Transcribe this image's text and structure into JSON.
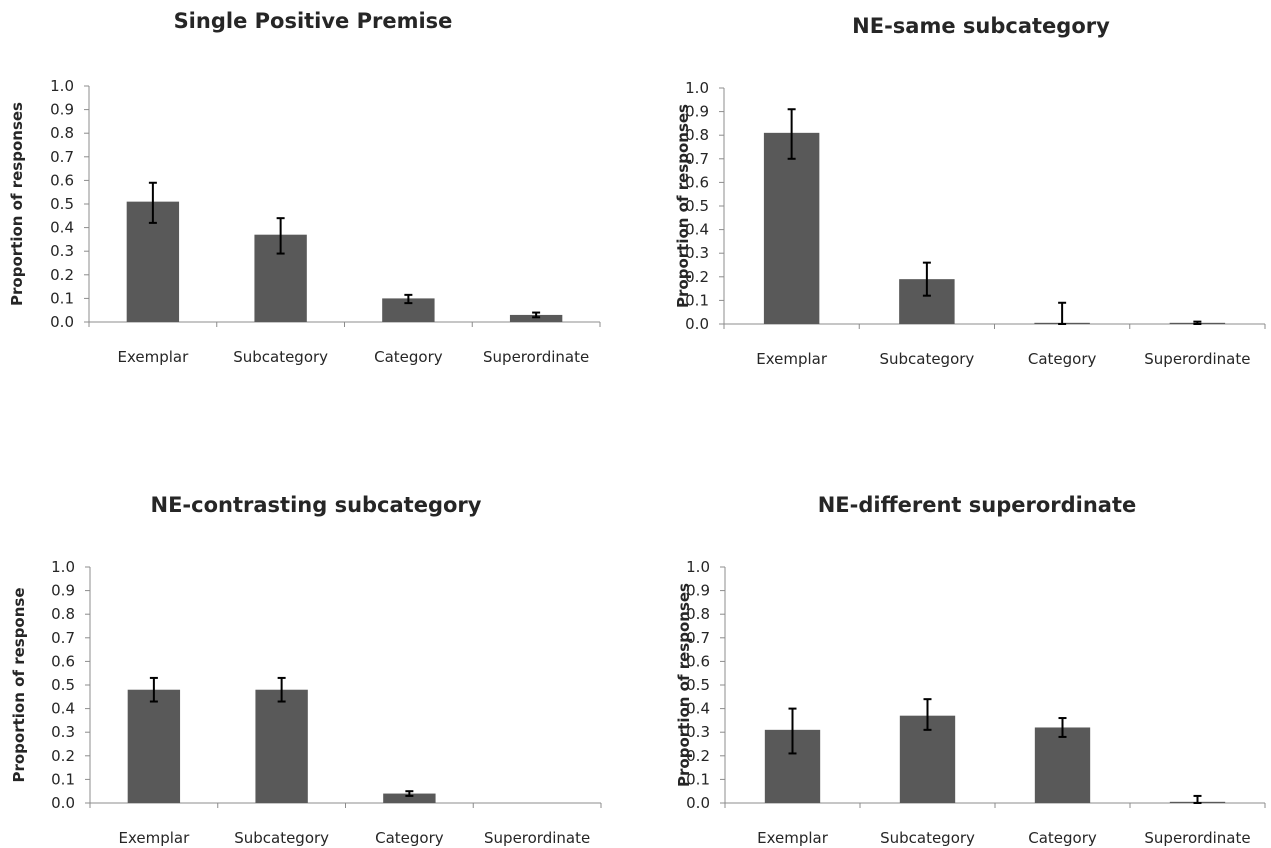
{
  "chart_data": [
    {
      "type": "bar",
      "title": "Single Positive Premise",
      "xlabel": "",
      "ylabel": "Proportion of responses",
      "ylim": [
        0,
        1
      ],
      "ticks": [
        "0.0",
        "0.1",
        "0.2",
        "0.3",
        "0.4",
        "0.5",
        "0.6",
        "0.7",
        "0.8",
        "0.9",
        "1.0"
      ],
      "categories": [
        "Exemplar",
        "Subcategory",
        "Category",
        "Superordinate"
      ],
      "values": [
        0.51,
        0.37,
        0.1,
        0.03
      ],
      "error": [
        [
          0.42,
          0.59
        ],
        [
          0.29,
          0.44
        ],
        [
          0.08,
          0.115
        ],
        [
          0.02,
          0.04
        ]
      ]
    },
    {
      "type": "bar",
      "title": "NE-same subcategory",
      "xlabel": "",
      "ylabel": "Proportion of responses",
      "ylim": [
        0,
        1
      ],
      "ticks": [
        "0.0",
        "0.1",
        "0.2",
        "0.3",
        "0.4",
        "0.5",
        "0.6",
        "0.7",
        "0.8",
        "0.9",
        "1.0"
      ],
      "categories": [
        "Exemplar",
        "Subcategory",
        "Category",
        "Superordinate"
      ],
      "values": [
        0.81,
        0.19,
        0.005,
        0.005
      ],
      "error": [
        [
          0.7,
          0.91
        ],
        [
          0.12,
          0.26
        ],
        [
          0.0,
          0.09
        ],
        [
          0.0,
          0.01
        ]
      ]
    },
    {
      "type": "bar",
      "title": "NE-contrasting subcategory",
      "xlabel": "",
      "ylabel": "Proportion of response",
      "ylim": [
        0,
        1
      ],
      "ticks": [
        "0.0",
        "0.1",
        "0.2",
        "0.3",
        "0.4",
        "0.5",
        "0.6",
        "0.7",
        "0.8",
        "0.9",
        "1.0"
      ],
      "categories": [
        "Exemplar",
        "Subcategory",
        "Category",
        "Superordinate"
      ],
      "values": [
        0.48,
        0.48,
        0.04,
        0
      ],
      "error": [
        [
          0.43,
          0.53
        ],
        [
          0.43,
          0.53
        ],
        [
          0.03,
          0.05
        ],
        null
      ]
    },
    {
      "type": "bar",
      "title": "NE-different superordinate",
      "xlabel": "",
      "ylabel": "Proportion of responses",
      "ylim": [
        0,
        1
      ],
      "ticks": [
        "0.0",
        "0.1",
        "0.2",
        "0.3",
        "0.4",
        "0.5",
        "0.6",
        "0.7",
        "0.8",
        "0.9",
        "1.0"
      ],
      "categories": [
        "Exemplar",
        "Subcategory",
        "Category",
        "Superordinate"
      ],
      "values": [
        0.31,
        0.37,
        0.32,
        0.005
      ],
      "error": [
        [
          0.21,
          0.4
        ],
        [
          0.31,
          0.44
        ],
        [
          0.28,
          0.36
        ],
        [
          0.0,
          0.03
        ]
      ]
    }
  ]
}
